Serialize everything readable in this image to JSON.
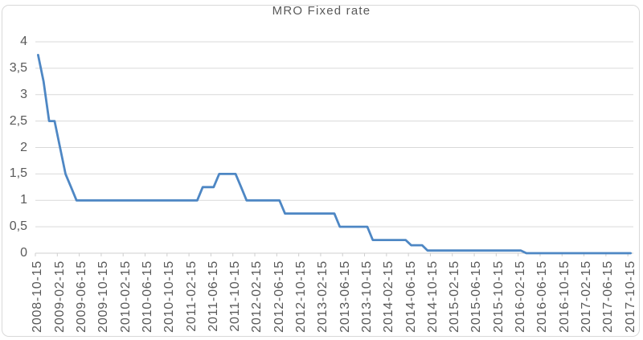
{
  "chart": {
    "title": "MRO Fixed rate",
    "colors": {
      "line": "#4E87C4",
      "grid": "#D9D9D9",
      "axis": "#CFCFCF",
      "text": "#595959",
      "border": "#D9D9D9",
      "background": "#FFFFFF"
    }
  },
  "chart_data": {
    "type": "line",
    "title": "MRO Fixed rate",
    "xlabel": "",
    "ylabel": "",
    "ylim": [
      0,
      4
    ],
    "grid": true,
    "legend": false,
    "line_style": "step-monthly",
    "y_ticks": {
      "values": [
        0,
        0.5,
        1,
        1.5,
        2,
        2.5,
        3,
        3.5,
        4
      ],
      "labels": [
        "0",
        "0,5",
        "1",
        "1,5",
        "2",
        "2,5",
        "3",
        "3,5",
        "4"
      ]
    },
    "x_tick_interval": 4,
    "x_tick_labels": [
      "2008-10-15",
      "2009-02-15",
      "2009-06-15",
      "2009-10-15",
      "2010-02-15",
      "2010-06-15",
      "2010-10-15",
      "2011-02-15",
      "2011-06-15",
      "2011-10-15",
      "2012-02-15",
      "2012-06-15",
      "2012-10-15",
      "2013-02-15",
      "2013-06-15",
      "2013-10-15",
      "2014-02-15",
      "2014-06-15",
      "2014-10-15",
      "2015-02-15",
      "2015-06-15",
      "2015-10-15",
      "2016-02-15",
      "2016-06-15",
      "2016-10-15",
      "2017-02-15",
      "2017-06-15",
      "2017-10-15"
    ],
    "x": [
      "2008-10-15",
      "2008-11-15",
      "2008-12-15",
      "2009-01-15",
      "2009-02-15",
      "2009-03-15",
      "2009-04-15",
      "2009-05-15",
      "2009-06-15",
      "2009-07-15",
      "2009-08-15",
      "2009-09-15",
      "2009-10-15",
      "2009-11-15",
      "2009-12-15",
      "2010-01-15",
      "2010-02-15",
      "2010-03-15",
      "2010-04-15",
      "2010-05-15",
      "2010-06-15",
      "2010-07-15",
      "2010-08-15",
      "2010-09-15",
      "2010-10-15",
      "2010-11-15",
      "2010-12-15",
      "2011-01-15",
      "2011-02-15",
      "2011-03-15",
      "2011-04-15",
      "2011-05-15",
      "2011-06-15",
      "2011-07-15",
      "2011-08-15",
      "2011-09-15",
      "2011-10-15",
      "2011-11-15",
      "2011-12-15",
      "2012-01-15",
      "2012-02-15",
      "2012-03-15",
      "2012-04-15",
      "2012-05-15",
      "2012-06-15",
      "2012-07-15",
      "2012-08-15",
      "2012-09-15",
      "2012-10-15",
      "2012-11-15",
      "2012-12-15",
      "2013-01-15",
      "2013-02-15",
      "2013-03-15",
      "2013-04-15",
      "2013-05-15",
      "2013-06-15",
      "2013-07-15",
      "2013-08-15",
      "2013-09-15",
      "2013-10-15",
      "2013-11-15",
      "2013-12-15",
      "2014-01-15",
      "2014-02-15",
      "2014-03-15",
      "2014-04-15",
      "2014-05-15",
      "2014-06-15",
      "2014-07-15",
      "2014-08-15",
      "2014-09-15",
      "2014-10-15",
      "2014-11-15",
      "2014-12-15",
      "2015-01-15",
      "2015-02-15",
      "2015-03-15",
      "2015-04-15",
      "2015-05-15",
      "2015-06-15",
      "2015-07-15",
      "2015-08-15",
      "2015-09-15",
      "2015-10-15",
      "2015-11-15",
      "2015-12-15",
      "2016-01-15",
      "2016-02-15",
      "2016-03-15",
      "2016-04-15",
      "2016-05-15",
      "2016-06-15",
      "2016-07-15",
      "2016-08-15",
      "2016-09-15",
      "2016-10-15",
      "2016-11-15",
      "2016-12-15",
      "2017-01-15",
      "2017-02-15",
      "2017-03-15",
      "2017-04-15",
      "2017-05-15",
      "2017-06-15",
      "2017-07-15",
      "2017-08-15",
      "2017-09-15",
      "2017-10-15"
    ],
    "y": [
      3.75,
      3.25,
      2.5,
      2.5,
      2,
      1.5,
      1.25,
      1,
      1,
      1,
      1,
      1,
      1,
      1,
      1,
      1,
      1,
      1,
      1,
      1,
      1,
      1,
      1,
      1,
      1,
      1,
      1,
      1,
      1,
      1,
      1.25,
      1.25,
      1.25,
      1.5,
      1.5,
      1.5,
      1.5,
      1.25,
      1,
      1,
      1,
      1,
      1,
      1,
      1,
      0.75,
      0.75,
      0.75,
      0.75,
      0.75,
      0.75,
      0.75,
      0.75,
      0.75,
      0.75,
      0.5,
      0.5,
      0.5,
      0.5,
      0.5,
      0.5,
      0.25,
      0.25,
      0.25,
      0.25,
      0.25,
      0.25,
      0.25,
      0.15,
      0.15,
      0.15,
      0.05,
      0.05,
      0.05,
      0.05,
      0.05,
      0.05,
      0.05,
      0.05,
      0.05,
      0.05,
      0.05,
      0.05,
      0.05,
      0.05,
      0.05,
      0.05,
      0.05,
      0.05,
      0,
      0,
      0,
      0,
      0,
      0,
      0,
      0,
      0,
      0,
      0,
      0,
      0,
      0,
      0,
      0,
      0,
      0,
      0,
      0
    ]
  }
}
